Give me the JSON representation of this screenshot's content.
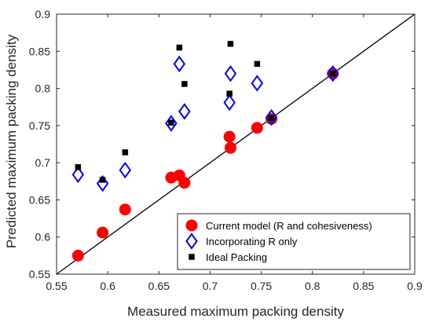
{
  "chart_data": {
    "type": "scatter",
    "xlabel": "Measured maximum packing density",
    "ylabel": "Predicted maximum packing density",
    "xlim": [
      0.55,
      0.9
    ],
    "ylim": [
      0.55,
      0.9
    ],
    "xticks": [
      "0.55",
      "0.6",
      "0.65",
      "0.7",
      "0.75",
      "0.8",
      "0.85",
      "0.9"
    ],
    "yticks": [
      "0.55",
      "0.6",
      "0.65",
      "0.7",
      "0.75",
      "0.8",
      "0.85",
      "0.9"
    ],
    "grid": false,
    "legend_position": "bottom-right",
    "reference_line": {
      "x": [
        0.55,
        0.9
      ],
      "y": [
        0.55,
        0.9
      ],
      "color": "#000000"
    },
    "series": [
      {
        "name": "Current model (R and cohesiveness)",
        "marker": "filled-circle",
        "color": "#ff0000",
        "points": [
          [
            0.571,
            0.575
          ],
          [
            0.595,
            0.606
          ],
          [
            0.617,
            0.637
          ],
          [
            0.662,
            0.68
          ],
          [
            0.67,
            0.683
          ],
          [
            0.675,
            0.673
          ],
          [
            0.719,
            0.735
          ],
          [
            0.72,
            0.72
          ],
          [
            0.746,
            0.747
          ],
          [
            0.76,
            0.759
          ],
          [
            0.82,
            0.82
          ]
        ]
      },
      {
        "name": "Incorporating R only",
        "marker": "open-diamond",
        "color": "#0000ff",
        "points": [
          [
            0.571,
            0.684
          ],
          [
            0.595,
            0.672
          ],
          [
            0.617,
            0.69
          ],
          [
            0.662,
            0.753
          ],
          [
            0.67,
            0.833
          ],
          [
            0.675,
            0.769
          ],
          [
            0.719,
            0.781
          ],
          [
            0.72,
            0.82
          ],
          [
            0.746,
            0.807
          ],
          [
            0.76,
            0.761
          ],
          [
            0.82,
            0.82
          ]
        ]
      },
      {
        "name": "Ideal Packing",
        "marker": "filled-square",
        "color": "#000000",
        "points": [
          [
            0.571,
            0.694
          ],
          [
            0.595,
            0.677
          ],
          [
            0.617,
            0.714
          ],
          [
            0.662,
            0.754
          ],
          [
            0.67,
            0.855
          ],
          [
            0.675,
            0.806
          ],
          [
            0.719,
            0.793
          ],
          [
            0.72,
            0.86
          ],
          [
            0.746,
            0.833
          ],
          [
            0.76,
            0.76
          ],
          [
            0.82,
            0.82
          ]
        ]
      }
    ]
  }
}
